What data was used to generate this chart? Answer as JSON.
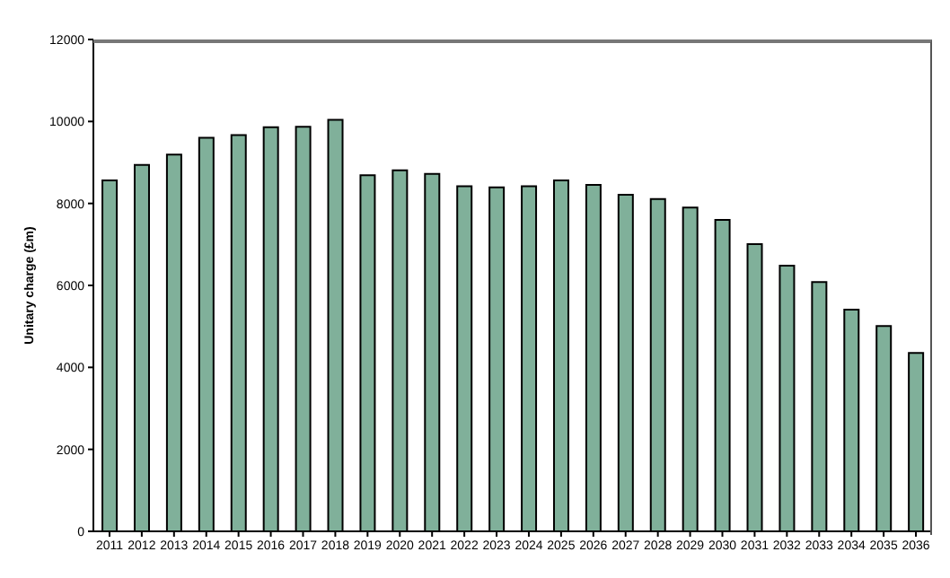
{
  "chart_data": {
    "type": "bar",
    "ylabel": "Unitary charge (£m)",
    "categories": [
      "2011",
      "2012",
      "2013",
      "2014",
      "2015",
      "2016",
      "2017",
      "2018",
      "2019",
      "2020",
      "2021",
      "2022",
      "2023",
      "2024",
      "2025",
      "2026",
      "2027",
      "2028",
      "2029",
      "2030",
      "2031",
      "2032",
      "2033",
      "2034",
      "2035",
      "2036"
    ],
    "values": [
      8560,
      8940,
      9190,
      9600,
      9670,
      9860,
      9870,
      10040,
      8690,
      8810,
      8720,
      8420,
      8390,
      8420,
      8560,
      8450,
      8210,
      8110,
      7900,
      7600,
      7010,
      6480,
      6080,
      5410,
      5010,
      4350
    ],
    "color": "#80b09a",
    "ylim": [
      0,
      12000
    ],
    "yticks": [
      0,
      2000,
      4000,
      6000,
      8000,
      10000,
      12000
    ],
    "grid": false,
    "legend": false
  }
}
